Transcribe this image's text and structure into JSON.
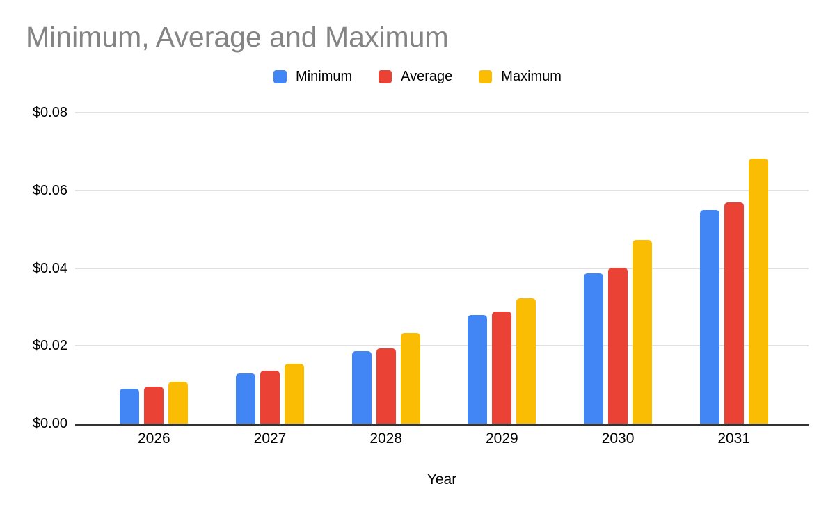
{
  "chart_data": {
    "type": "bar",
    "title": "Minimum, Average and Maximum",
    "xlabel": "Year",
    "ylabel": "",
    "categories": [
      "2026",
      "2027",
      "2028",
      "2029",
      "2030",
      "2031"
    ],
    "series": [
      {
        "name": "Minimum",
        "color": "#4285F4",
        "values": [
          0.0089,
          0.0128,
          0.0187,
          0.028,
          0.0386,
          0.055
        ]
      },
      {
        "name": "Average",
        "color": "#EA4335",
        "values": [
          0.0094,
          0.0136,
          0.0194,
          0.0288,
          0.04,
          0.057
        ]
      },
      {
        "name": "Maximum",
        "color": "#FBBC04",
        "values": [
          0.0107,
          0.0154,
          0.0233,
          0.0323,
          0.0472,
          0.0681
        ]
      }
    ],
    "ylim": [
      0,
      0.08
    ],
    "yticks": [
      {
        "value": 0.0,
        "label": "$0.00"
      },
      {
        "value": 0.02,
        "label": "$0.02"
      },
      {
        "value": 0.04,
        "label": "$0.04"
      },
      {
        "value": 0.06,
        "label": "$0.06"
      },
      {
        "value": 0.08,
        "label": "$0.08"
      }
    ],
    "grid": true,
    "legend_position": "top"
  },
  "colors": {
    "title_text": "#848484",
    "axis_line": "#333333",
    "gridline": "#e0e0e0",
    "label_text": "#000000",
    "background": "#ffffff"
  }
}
